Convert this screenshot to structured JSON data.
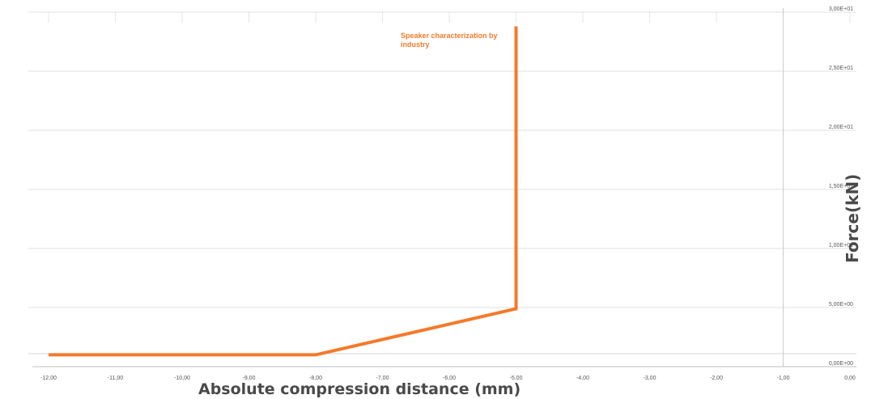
{
  "chart_data": {
    "type": "line",
    "xlabel": "Absolute compression distance (mm)",
    "ylabel": "Force(kN)",
    "xlim": [
      -12,
      0
    ],
    "ylim": [
      0,
      30
    ],
    "x_ticks": [
      "-12,00",
      "-11,00",
      "-10,00",
      "-9,00",
      "-8,00",
      "-7,00",
      "-6,00",
      "-5,00",
      "-4,00",
      "-3,00",
      "-2,00",
      "-1,00",
      "0,00"
    ],
    "y_ticks": [
      "0,00E+00",
      "5,00E+00",
      "1,00E+01",
      "1,50E+01",
      "2,00E+01",
      "2,50E+01",
      "3,00E+01"
    ],
    "grid": "horizontal",
    "series": [
      {
        "color": "#f47a2a",
        "points": [
          [
            -12,
            1
          ],
          [
            -8,
            1
          ],
          [
            -5,
            4.9
          ],
          [
            -5,
            28.8
          ]
        ]
      }
    ],
    "annotation": {
      "lines": [
        "Speaker characterization by",
        "industry"
      ],
      "color": "#f47a2a"
    }
  }
}
